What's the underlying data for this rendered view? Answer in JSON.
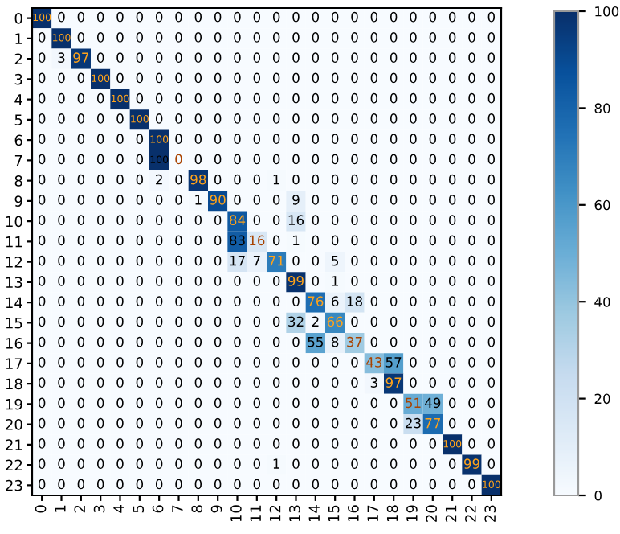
{
  "chart_data": {
    "type": "heatmap",
    "categories": [
      "0",
      "1",
      "2",
      "3",
      "4",
      "5",
      "6",
      "7",
      "8",
      "9",
      "10",
      "11",
      "12",
      "13",
      "14",
      "15",
      "16",
      "17",
      "18",
      "19",
      "20",
      "21",
      "22",
      "23"
    ],
    "y_categories": [
      "0",
      "1",
      "2",
      "3",
      "4",
      "5",
      "6",
      "7",
      "8",
      "9",
      "10",
      "11",
      "12",
      "13",
      "14",
      "15",
      "16",
      "17",
      "18",
      "19",
      "20",
      "21",
      "22",
      "23"
    ],
    "cells": [
      [
        100,
        0,
        0,
        0,
        0,
        0,
        0,
        0,
        0,
        0,
        0,
        0,
        0,
        0,
        0,
        0,
        0,
        0,
        0,
        0,
        0,
        0,
        0,
        0
      ],
      [
        0,
        100,
        0,
        0,
        0,
        0,
        0,
        0,
        0,
        0,
        0,
        0,
        0,
        0,
        0,
        0,
        0,
        0,
        0,
        0,
        0,
        0,
        0,
        0
      ],
      [
        0,
        3,
        97,
        0,
        0,
        0,
        0,
        0,
        0,
        0,
        0,
        0,
        0,
        0,
        0,
        0,
        0,
        0,
        0,
        0,
        0,
        0,
        0,
        0
      ],
      [
        0,
        0,
        0,
        100,
        0,
        0,
        0,
        0,
        0,
        0,
        0,
        0,
        0,
        0,
        0,
        0,
        0,
        0,
        0,
        0,
        0,
        0,
        0,
        0
      ],
      [
        0,
        0,
        0,
        0,
        100,
        0,
        0,
        0,
        0,
        0,
        0,
        0,
        0,
        0,
        0,
        0,
        0,
        0,
        0,
        0,
        0,
        0,
        0,
        0
      ],
      [
        0,
        0,
        0,
        0,
        0,
        100,
        0,
        0,
        0,
        0,
        0,
        0,
        0,
        0,
        0,
        0,
        0,
        0,
        0,
        0,
        0,
        0,
        0,
        0
      ],
      [
        0,
        0,
        0,
        0,
        0,
        0,
        100,
        0,
        0,
        0,
        0,
        0,
        0,
        0,
        0,
        0,
        0,
        0,
        0,
        0,
        0,
        0,
        0,
        0
      ],
      [
        0,
        0,
        0,
        0,
        0,
        0,
        100,
        0,
        0,
        0,
        0,
        0,
        0,
        0,
        0,
        0,
        0,
        0,
        0,
        0,
        0,
        0,
        0,
        0
      ],
      [
        0,
        0,
        0,
        0,
        0,
        0,
        2,
        0,
        98,
        0,
        0,
        0,
        1,
        0,
        0,
        0,
        0,
        0,
        0,
        0,
        0,
        0,
        0,
        0
      ],
      [
        0,
        0,
        0,
        0,
        0,
        0,
        0,
        0,
        1,
        90,
        0,
        0,
        0,
        9,
        0,
        0,
        0,
        0,
        0,
        0,
        0,
        0,
        0,
        0
      ],
      [
        0,
        0,
        0,
        0,
        0,
        0,
        0,
        0,
        0,
        0,
        84,
        0,
        0,
        16,
        0,
        0,
        0,
        0,
        0,
        0,
        0,
        0,
        0,
        0
      ],
      [
        0,
        0,
        0,
        0,
        0,
        0,
        0,
        0,
        0,
        0,
        83,
        16,
        0,
        1,
        0,
        0,
        0,
        0,
        0,
        0,
        0,
        0,
        0,
        0
      ],
      [
        0,
        0,
        0,
        0,
        0,
        0,
        0,
        0,
        0,
        0,
        17,
        7,
        71,
        0,
        0,
        5,
        0,
        0,
        0,
        0,
        0,
        0,
        0,
        0
      ],
      [
        0,
        0,
        0,
        0,
        0,
        0,
        0,
        0,
        0,
        0,
        0,
        0,
        0,
        99,
        0,
        1,
        0,
        0,
        0,
        0,
        0,
        0,
        0,
        0
      ],
      [
        0,
        0,
        0,
        0,
        0,
        0,
        0,
        0,
        0,
        0,
        0,
        0,
        0,
        0,
        76,
        6,
        18,
        0,
        0,
        0,
        0,
        0,
        0,
        0
      ],
      [
        0,
        0,
        0,
        0,
        0,
        0,
        0,
        0,
        0,
        0,
        0,
        0,
        0,
        32,
        2,
        66,
        0,
        0,
        0,
        0,
        0,
        0,
        0,
        0
      ],
      [
        0,
        0,
        0,
        0,
        0,
        0,
        0,
        0,
        0,
        0,
        0,
        0,
        0,
        0,
        55,
        8,
        37,
        0,
        0,
        0,
        0,
        0,
        0,
        0
      ],
      [
        0,
        0,
        0,
        0,
        0,
        0,
        0,
        0,
        0,
        0,
        0,
        0,
        0,
        0,
        0,
        0,
        0,
        43,
        57,
        0,
        0,
        0,
        0,
        0
      ],
      [
        0,
        0,
        0,
        0,
        0,
        0,
        0,
        0,
        0,
        0,
        0,
        0,
        0,
        0,
        0,
        0,
        0,
        3,
        97,
        0,
        0,
        0,
        0,
        0
      ],
      [
        0,
        0,
        0,
        0,
        0,
        0,
        0,
        0,
        0,
        0,
        0,
        0,
        0,
        0,
        0,
        0,
        0,
        0,
        0,
        51,
        49,
        0,
        0,
        0
      ],
      [
        0,
        0,
        0,
        0,
        0,
        0,
        0,
        0,
        0,
        0,
        0,
        0,
        0,
        0,
        0,
        0,
        0,
        0,
        0,
        23,
        77,
        0,
        0,
        0
      ],
      [
        0,
        0,
        0,
        0,
        0,
        0,
        0,
        0,
        0,
        0,
        0,
        0,
        0,
        0,
        0,
        0,
        0,
        0,
        0,
        0,
        0,
        100,
        0,
        0
      ],
      [
        0,
        0,
        0,
        0,
        0,
        0,
        0,
        0,
        0,
        0,
        0,
        0,
        1,
        0,
        0,
        0,
        0,
        0,
        0,
        0,
        0,
        0,
        99,
        0
      ],
      [
        0,
        0,
        0,
        0,
        0,
        0,
        0,
        0,
        0,
        0,
        0,
        0,
        0,
        0,
        0,
        0,
        0,
        0,
        0,
        0,
        0,
        0,
        0,
        100
      ]
    ],
    "clim": [
      0,
      100
    ],
    "cticks": [
      0,
      20,
      40,
      60,
      80,
      100
    ],
    "data_labels": true
  }
}
